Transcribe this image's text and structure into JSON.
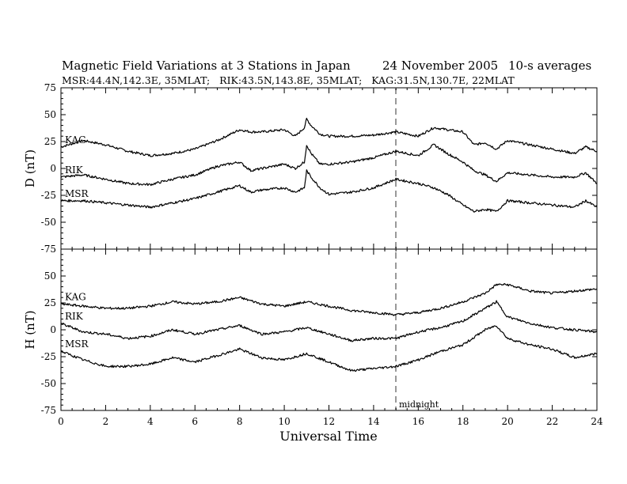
{
  "header": {
    "title": "Magnetic Field Variations at 3 Stations in Japan",
    "date": "24 November 2005",
    "averaging": "10-s averages",
    "stations_line": "MSR:44.4N,142.3E, 35MLAT;   RIK:43.5N,143.8E, 35MLAT;   KAG:31.5N,130.7E, 22MLAT"
  },
  "chart_data": [
    {
      "type": "line",
      "panel": "D",
      "ylabel": "D (nT)",
      "ylim": [
        -75,
        75
      ],
      "yticks": [
        -75,
        -50,
        -25,
        0,
        25,
        50,
        75
      ],
      "xlim": [
        0,
        24
      ],
      "grid": false,
      "x": [
        0,
        1,
        2,
        3,
        4,
        5,
        6,
        7,
        8,
        8.5,
        9,
        10,
        10.5,
        10.9,
        11,
        11.2,
        11.6,
        12,
        13,
        14,
        15,
        16,
        16.7,
        17.3,
        18,
        18.5,
        19,
        19.5,
        20,
        21,
        22,
        23,
        23.5,
        24
      ],
      "series": [
        {
          "name": "KAG",
          "values": [
            20,
            26,
            22,
            16,
            12,
            14,
            18,
            26,
            36,
            34,
            34,
            36,
            30,
            38,
            46,
            40,
            32,
            30,
            30,
            31,
            34,
            30,
            38,
            36,
            34,
            22,
            24,
            18,
            26,
            22,
            18,
            14,
            20,
            16
          ]
        },
        {
          "name": "RIK",
          "values": [
            -8,
            -6,
            -10,
            -14,
            -15,
            -10,
            -6,
            2,
            6,
            -2,
            0,
            4,
            0,
            6,
            22,
            14,
            4,
            4,
            6,
            10,
            16,
            12,
            22,
            14,
            6,
            -2,
            -6,
            -12,
            -4,
            -6,
            -8,
            -8,
            -4,
            -14
          ]
        },
        {
          "name": "MSR",
          "values": [
            -30,
            -30,
            -32,
            -34,
            -36,
            -32,
            -28,
            -22,
            -16,
            -22,
            -20,
            -18,
            -22,
            -18,
            -2,
            -8,
            -18,
            -24,
            -22,
            -18,
            -10,
            -14,
            -18,
            -24,
            -34,
            -40,
            -38,
            -40,
            -30,
            -32,
            -34,
            -36,
            -30,
            -36
          ]
        }
      ]
    },
    {
      "type": "line",
      "panel": "H",
      "ylabel": "H (nT)",
      "xlabel": "Universal Time",
      "ylim": [
        -75,
        75
      ],
      "yticks": [
        -75,
        -50,
        -25,
        0,
        25,
        50,
        75
      ],
      "xlim": [
        0,
        24
      ],
      "xticks": [
        0,
        2,
        4,
        6,
        8,
        10,
        12,
        14,
        16,
        18,
        20,
        22,
        24
      ],
      "grid": false,
      "x": [
        0,
        1,
        2,
        3,
        4,
        5,
        6,
        7,
        8,
        9,
        10,
        11,
        12,
        13,
        14,
        15,
        16,
        17,
        18,
        19,
        19.5,
        20,
        21,
        22,
        23,
        24
      ],
      "series": [
        {
          "name": "KAG",
          "values": [
            24,
            22,
            20,
            20,
            22,
            26,
            24,
            26,
            30,
            24,
            22,
            26,
            22,
            18,
            16,
            14,
            16,
            20,
            26,
            34,
            42,
            42,
            36,
            34,
            36,
            38
          ]
        },
        {
          "name": "RIK",
          "values": [
            6,
            -2,
            -4,
            -8,
            -6,
            0,
            -4,
            0,
            4,
            -4,
            -2,
            2,
            -4,
            -10,
            -8,
            -8,
            -2,
            2,
            8,
            20,
            26,
            12,
            6,
            2,
            0,
            -2
          ]
        },
        {
          "name": "MSR",
          "values": [
            -20,
            -28,
            -34,
            -34,
            -32,
            -26,
            -30,
            -24,
            -18,
            -26,
            -28,
            -22,
            -30,
            -38,
            -36,
            -34,
            -28,
            -20,
            -14,
            0,
            4,
            -8,
            -14,
            -18,
            -26,
            -22
          ]
        }
      ]
    }
  ],
  "annotations": {
    "midnight_label": "midnight",
    "midnight_ut": 15
  }
}
